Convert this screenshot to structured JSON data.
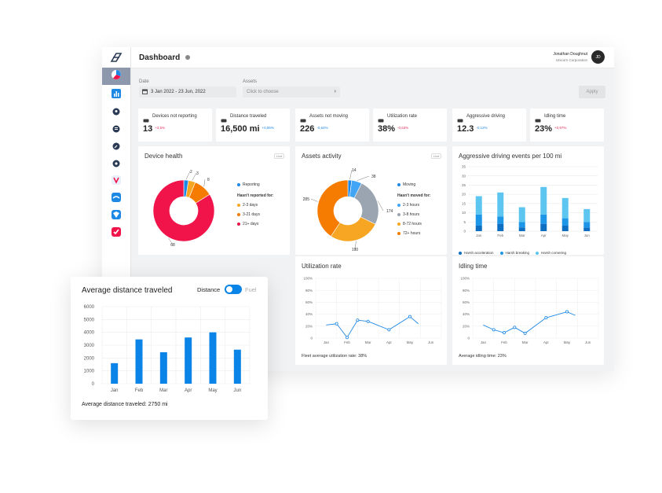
{
  "header": {
    "title": "Dashboard",
    "user_name": "Jonathan Doughnut",
    "company": "Unicorn Corporation",
    "avatar_initials": "JD"
  },
  "filters": {
    "date_label": "Date",
    "date_value": "3 Jan 2022 - 23 Jun, 2022",
    "assets_label": "Assets",
    "assets_placeholder": "Click to choose",
    "apply_label": "Apply"
  },
  "sidebar": {
    "items": [
      "dashboard-icon",
      "chart-icon",
      "location-icon",
      "list-icon",
      "wrench-icon",
      "gear-icon",
      "brand-v-icon",
      "brand-wave-icon",
      "brand-shield-icon",
      "brand-check-icon"
    ]
  },
  "kpis": [
    {
      "label": "Devices not reporting",
      "value": "13",
      "change": "+3,6%",
      "change_color": "#e8345c",
      "icon": "device-icon"
    },
    {
      "label": "Distance traveled",
      "value": "16,500 mi",
      "change": "+0,95%",
      "change_color": "#1e88e5",
      "icon": "route-icon"
    },
    {
      "label": "Assets not moving",
      "value": "226",
      "change": "-0,64%",
      "change_color": "#1e88e5",
      "icon": "car-icon"
    },
    {
      "label": "Utilization rate",
      "value": "38%",
      "change": "-0,63%",
      "change_color": "#e8345c",
      "icon": "recycle-icon"
    },
    {
      "label": "Aggressive driving",
      "value": "12.3",
      "change": "-0,12%",
      "change_color": "#1e88e5",
      "icon": "car-fast-icon"
    },
    {
      "label": "Idling time",
      "value": "23%",
      "change": "+0,97%",
      "change_color": "#e8345c",
      "icon": "truck-icon"
    }
  ],
  "live_badge": "Live",
  "colors": {
    "blue": "#1e88e5",
    "light_blue": "#5cc6f0",
    "dark_blue": "#0d6ec2",
    "orange_light": "#f6a623",
    "orange": "#f57c00",
    "red": "#f0144b",
    "gray": "#9aa5b1",
    "accent": "#0b84e8"
  },
  "chart_data": [
    {
      "type": "pie",
      "title": "Device health",
      "series": [
        {
          "name": "Reporting",
          "value": 2,
          "color": "#1e88e5"
        },
        {
          "name": "2-3 days",
          "value": 3,
          "color": "#f6a623"
        },
        {
          "name": "3-21 days",
          "value": 8,
          "color": "#f57c00"
        },
        {
          "name": "21+ days",
          "value": 68,
          "color": "#f0144b"
        }
      ],
      "legend_heading": "Hasn't reported for:"
    },
    {
      "type": "pie",
      "title": "Assets activity",
      "series": [
        {
          "name": "Moving",
          "value": 14,
          "color": "#1e88e5"
        },
        {
          "name": "2-3 hours",
          "value": 38,
          "color": "#42a5f5"
        },
        {
          "name": "3-8 hours",
          "value": 174,
          "color": "#9aa5b1"
        },
        {
          "name": "8-72 hours",
          "value": 190,
          "color": "#f6a623"
        },
        {
          "name": "72+ hours",
          "value": 285,
          "color": "#f57c00"
        }
      ],
      "legend_heading": "Hasn't moved for:"
    },
    {
      "type": "bar",
      "title": "Aggressive driving events per 100 mi",
      "categories": [
        "Jan",
        "Feb",
        "Mar",
        "Apr",
        "May",
        "Jun"
      ],
      "ylim": [
        0,
        35
      ],
      "yticks": [
        0,
        5,
        10,
        15,
        20,
        25,
        30,
        35
      ],
      "series": [
        {
          "name": "Harsh acceleration",
          "values": [
            3,
            4,
            2,
            4,
            3,
            2
          ],
          "color": "#0d6ec2"
        },
        {
          "name": "Harsh breaking",
          "values": [
            6,
            4,
            3,
            5,
            4,
            3
          ],
          "color": "#1e96e8"
        },
        {
          "name": "Harsh cornering",
          "values": [
            10,
            13,
            8,
            15,
            11,
            7
          ],
          "color": "#5cc6f0"
        }
      ]
    },
    {
      "type": "line",
      "title": "Utilization rate",
      "x": [
        "Jan",
        "Feb",
        "Mar",
        "Apr",
        "May",
        "Jun"
      ],
      "yticks": [
        "0",
        "20%",
        "40%",
        "60%",
        "80%",
        "100%"
      ],
      "ylim": [
        0,
        100
      ],
      "points": [
        [
          0.5,
          22
        ],
        [
          1.0,
          24
        ],
        [
          1.5,
          1
        ],
        [
          2.0,
          30
        ],
        [
          2.5,
          28
        ],
        [
          3.5,
          14
        ],
        [
          4.5,
          36
        ],
        [
          4.9,
          24
        ]
      ],
      "footer": "Fleet average utilization rate: 38%"
    },
    {
      "type": "line",
      "title": "Idling time",
      "x": [
        "Jan",
        "Feb",
        "Mar",
        "Apr",
        "May",
        "Jun"
      ],
      "yticks": [
        "0",
        "20%",
        "40%",
        "60%",
        "80%",
        "100%"
      ],
      "ylim": [
        0,
        100
      ],
      "points": [
        [
          0.5,
          22
        ],
        [
          1.0,
          14
        ],
        [
          1.5,
          9
        ],
        [
          2.0,
          18
        ],
        [
          2.5,
          8
        ],
        [
          3.5,
          34
        ],
        [
          4.5,
          44
        ],
        [
          4.9,
          38
        ]
      ],
      "footer": "Average idling time: 23%"
    },
    {
      "type": "bar",
      "title": "Average distance traveled",
      "categories": [
        "Jan",
        "Feb",
        "Mar",
        "Apr",
        "May",
        "Jun"
      ],
      "values": [
        1600,
        3450,
        2450,
        3600,
        4000,
        2650
      ],
      "ylim": [
        0,
        6000
      ],
      "yticks": [
        0,
        1000,
        2000,
        3000,
        4000,
        5000,
        6000
      ],
      "footer": "Average distance traveled: 2750 mi"
    }
  ],
  "toggle": {
    "left_label": "Distance",
    "right_label": "Fuel",
    "state": "Distance"
  }
}
